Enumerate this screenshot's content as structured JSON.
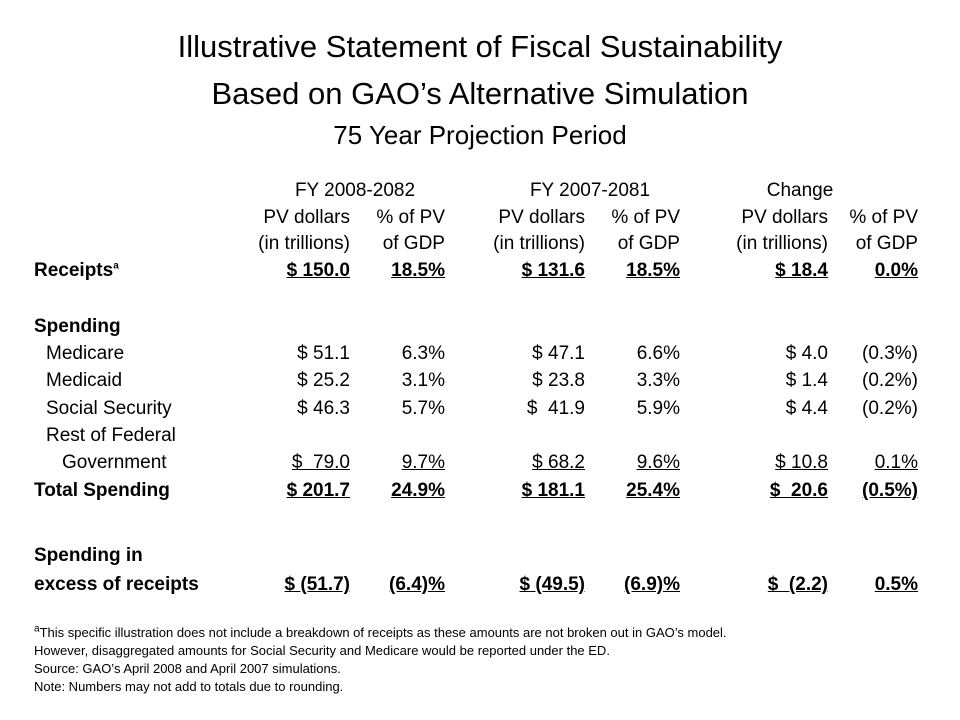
{
  "title": {
    "line1": "Illustrative Statement of Fiscal Sustainability",
    "line2": "Based on GAO’s Alternative Simulation",
    "line3": "75 Year Projection Period"
  },
  "groups": [
    "FY 2008-2082",
    "FY 2007-2081",
    "Change"
  ],
  "subheaders": {
    "pv_line1": "PV dollars",
    "pv_line2": "(in trillions)",
    "pct_line1": "% of PV",
    "pct_line2": "of GDP"
  },
  "rows": [
    {
      "label": "Receipts",
      "sup": "a",
      "bold": true,
      "underline": true,
      "values": [
        "$ 150.0",
        "18.5%",
        "$ 131.6",
        "18.5%",
        "$ 18.4",
        "0.0%"
      ]
    },
    {
      "label": "Spending",
      "bold": true,
      "values": []
    },
    {
      "label": "Medicare",
      "values": [
        "$ 51.1",
        "6.3%",
        "$ 47.1",
        "6.6%",
        "$ 4.0",
        "(0.3%)"
      ]
    },
    {
      "label": "Medicaid",
      "values": [
        "$ 25.2",
        "3.1%",
        "$ 23.8",
        "3.3%",
        "$ 1.4",
        "(0.2%)"
      ]
    },
    {
      "label": "Social Security",
      "values": [
        "$ 46.3",
        "5.7%",
        "$  41.9",
        "5.9%",
        "$ 4.4",
        "(0.2%)"
      ]
    },
    {
      "label": "Rest of Federal",
      "values": []
    },
    {
      "label": "Government",
      "underline": true,
      "values": [
        "$  79.0",
        "9.7%",
        "$ 68.2",
        "9.6%",
        "$ 10.8",
        "0.1%"
      ]
    },
    {
      "label": "Total Spending",
      "bold": true,
      "underline": true,
      "values": [
        "$ 201.7",
        "24.9%",
        "$ 181.1",
        "25.4%",
        "$  20.6",
        "(0.5%)"
      ]
    },
    {
      "label": "Spending in",
      "bold": true,
      "values": []
    },
    {
      "label": "excess of receipts",
      "bold": true,
      "underline": true,
      "values": [
        "$ (51.7)",
        "(6.4)%",
        "$ (49.5)",
        "(6.9)%",
        "$  (2.2)",
        "0.5%"
      ]
    }
  ],
  "footnotes": {
    "line1_sup": "a",
    "line1": "This specific illustration does not include a breakdown of receipts as these amounts are not broken out in GAO’s model.",
    "line2": "However, disaggregated amounts for Social Security and Medicare would be reported under the ED.",
    "line3": "Source:  GAO’s April 2008 and April 2007 simulations.",
    "line4": "Note:  Numbers may not add to totals due to rounding."
  }
}
